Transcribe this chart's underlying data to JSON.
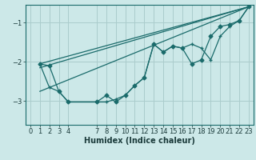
{
  "xlabel": "Humidex (Indice chaleur)",
  "bg_color": "#cce8e8",
  "grid_color": "#aacccc",
  "line_color": "#1a6b6b",
  "xlim": [
    -0.5,
    23.5
  ],
  "ylim": [
    -3.6,
    -0.55
  ],
  "yticks": [
    -3,
    -2,
    -1
  ],
  "xticks": [
    0,
    1,
    2,
    3,
    4,
    7,
    8,
    9,
    10,
    11,
    12,
    13,
    14,
    15,
    16,
    17,
    18,
    19,
    20,
    21,
    22,
    23
  ],
  "curve1_x": [
    1,
    2,
    3,
    4,
    7,
    8,
    9,
    10,
    11,
    12,
    13,
    14,
    15,
    16,
    17,
    18,
    19,
    20,
    21,
    22,
    23
  ],
  "curve1_y": [
    -2.05,
    -2.1,
    -2.75,
    -3.02,
    -3.02,
    -2.85,
    -3.02,
    -2.85,
    -2.6,
    -2.4,
    -1.55,
    -1.75,
    -1.6,
    -1.65,
    -2.05,
    -1.95,
    -1.35,
    -1.1,
    -1.05,
    -0.95,
    -0.6
  ],
  "curve2_x": [
    1,
    2,
    3,
    4,
    7,
    8,
    9,
    10,
    11,
    12,
    13,
    14,
    15,
    16,
    17,
    18,
    19,
    20,
    21,
    22,
    23
  ],
  "curve2_y": [
    -2.05,
    -2.65,
    -2.75,
    -3.02,
    -3.02,
    -3.02,
    -2.95,
    -2.85,
    -2.6,
    -2.4,
    -1.55,
    -1.75,
    -1.6,
    -1.65,
    -1.55,
    -1.65,
    -1.95,
    -1.35,
    -1.1,
    -0.95,
    -0.6
  ],
  "trendline1_x": [
    1,
    23
  ],
  "trendline1_y": [
    -2.05,
    -0.6
  ],
  "trendline2_x": [
    1,
    23
  ],
  "trendline2_y": [
    -2.15,
    -0.6
  ],
  "trendline3_x": [
    1,
    23
  ],
  "trendline3_y": [
    -2.75,
    -0.6
  ]
}
